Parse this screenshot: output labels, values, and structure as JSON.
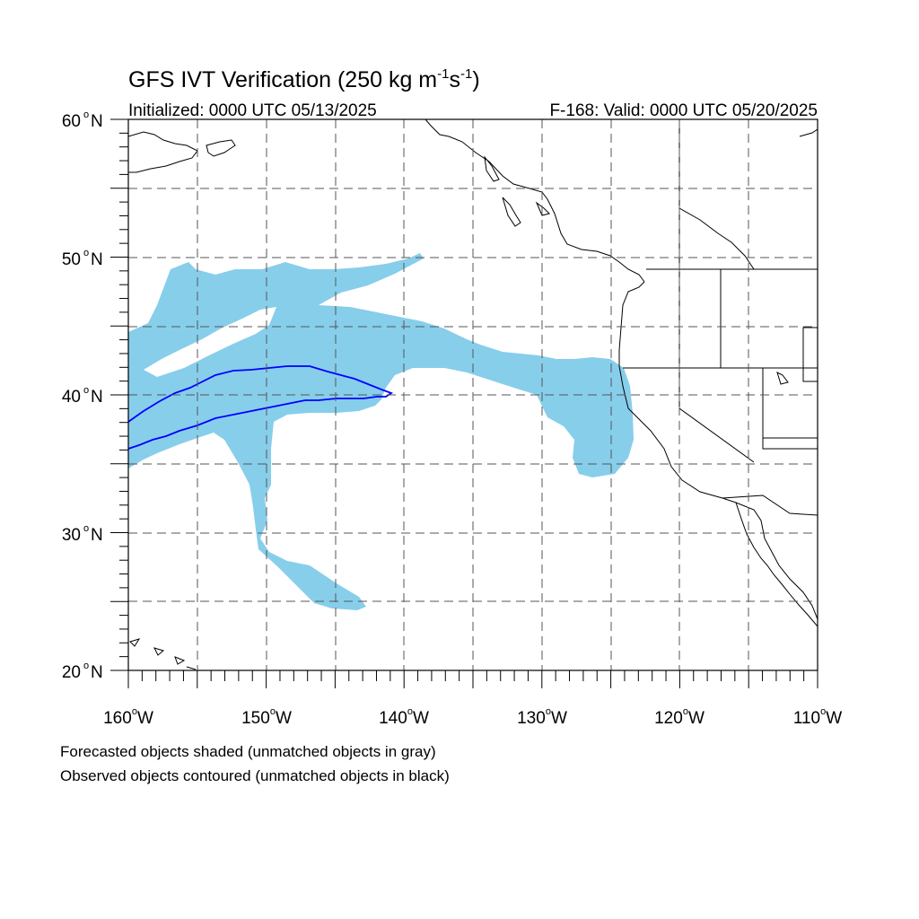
{
  "title": {
    "main": "GFS IVT Verification (250 kg m",
    "sup1": "-1",
    "mid": "s",
    "sup2": "-1",
    "close": ")"
  },
  "subtitle_left": "Initialized: 0000 UTC 05/13/2025",
  "subtitle_right": "F-168: Valid: 0000 UTC 05/20/2025",
  "map": {
    "lon_range": [
      -160,
      -110
    ],
    "lat_range": [
      20,
      60
    ],
    "grid_lines": "dashed",
    "lat_labels": [
      {
        "value": 60,
        "text": "60",
        "hemi": "N"
      },
      {
        "value": 50,
        "text": "50",
        "hemi": "N"
      },
      {
        "value": 40,
        "text": "40",
        "hemi": "N"
      },
      {
        "value": 30,
        "text": "30",
        "hemi": "N"
      },
      {
        "value": 20,
        "text": "20",
        "hemi": "N"
      }
    ],
    "lon_labels": [
      {
        "value": -160,
        "text": "160",
        "hemi": "W"
      },
      {
        "value": -150,
        "text": "150",
        "hemi": "W"
      },
      {
        "value": -140,
        "text": "140",
        "hemi": "W"
      },
      {
        "value": -130,
        "text": "130",
        "hemi": "W"
      },
      {
        "value": -120,
        "text": "120",
        "hemi": "W"
      },
      {
        "value": -110,
        "text": "110",
        "hemi": "W"
      }
    ],
    "colors": {
      "forecast_fill": "#87CEEB",
      "observed_contour": "#0000FF",
      "coast": "#000000",
      "grid": "#555555"
    }
  },
  "notes": [
    "Forecasted objects shaded (unmatched objects in gray)",
    "Observed objects contoured (unmatched objects in black)"
  ]
}
